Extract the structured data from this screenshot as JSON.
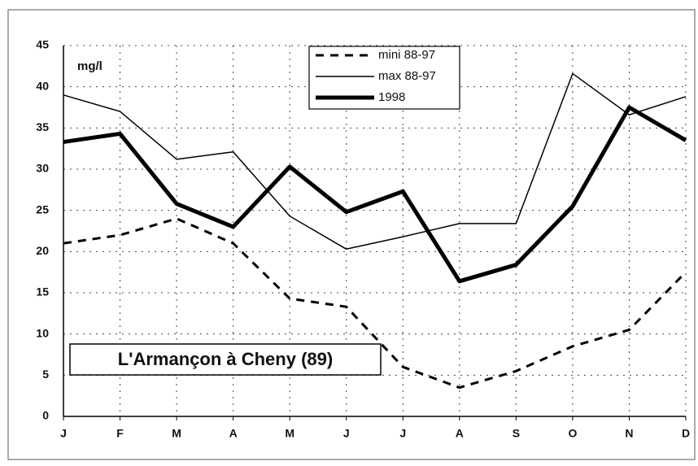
{
  "chart_data": {
    "type": "line",
    "annotations": [
      "mg/l",
      "L'Armançon à Cheny (89)"
    ],
    "categories": [
      "J",
      "F",
      "M",
      "A",
      "M",
      "J",
      "J",
      "A",
      "S",
      "O",
      "N",
      "D"
    ],
    "series": [
      {
        "name": "mini 88-97",
        "color": "#000000",
        "style": "dashed",
        "width": 3,
        "values": [
          21,
          22,
          24,
          21,
          14.3,
          13.3,
          6,
          3.5,
          5.5,
          8.5,
          10.5,
          17.5
        ]
      },
      {
        "name": "max 88-97",
        "color": "#000000",
        "style": "solid",
        "width": 1.5,
        "values": [
          39,
          37,
          31.2,
          32.1,
          24.3,
          20.3,
          21.8,
          23.4,
          23.4,
          41.6,
          36.6,
          38.8
        ]
      },
      {
        "name": "1998",
        "color": "#000000",
        "style": "solid",
        "width": 5,
        "values": [
          33.3,
          34.3,
          25.8,
          23,
          30.3,
          24.8,
          27.3,
          16.4,
          18.4,
          25.5,
          37.5,
          33.5
        ]
      }
    ],
    "ylim": [
      0,
      45
    ],
    "yticks": [
      0,
      5,
      10,
      15,
      20,
      25,
      30,
      35,
      40,
      45
    ],
    "grid": true
  }
}
